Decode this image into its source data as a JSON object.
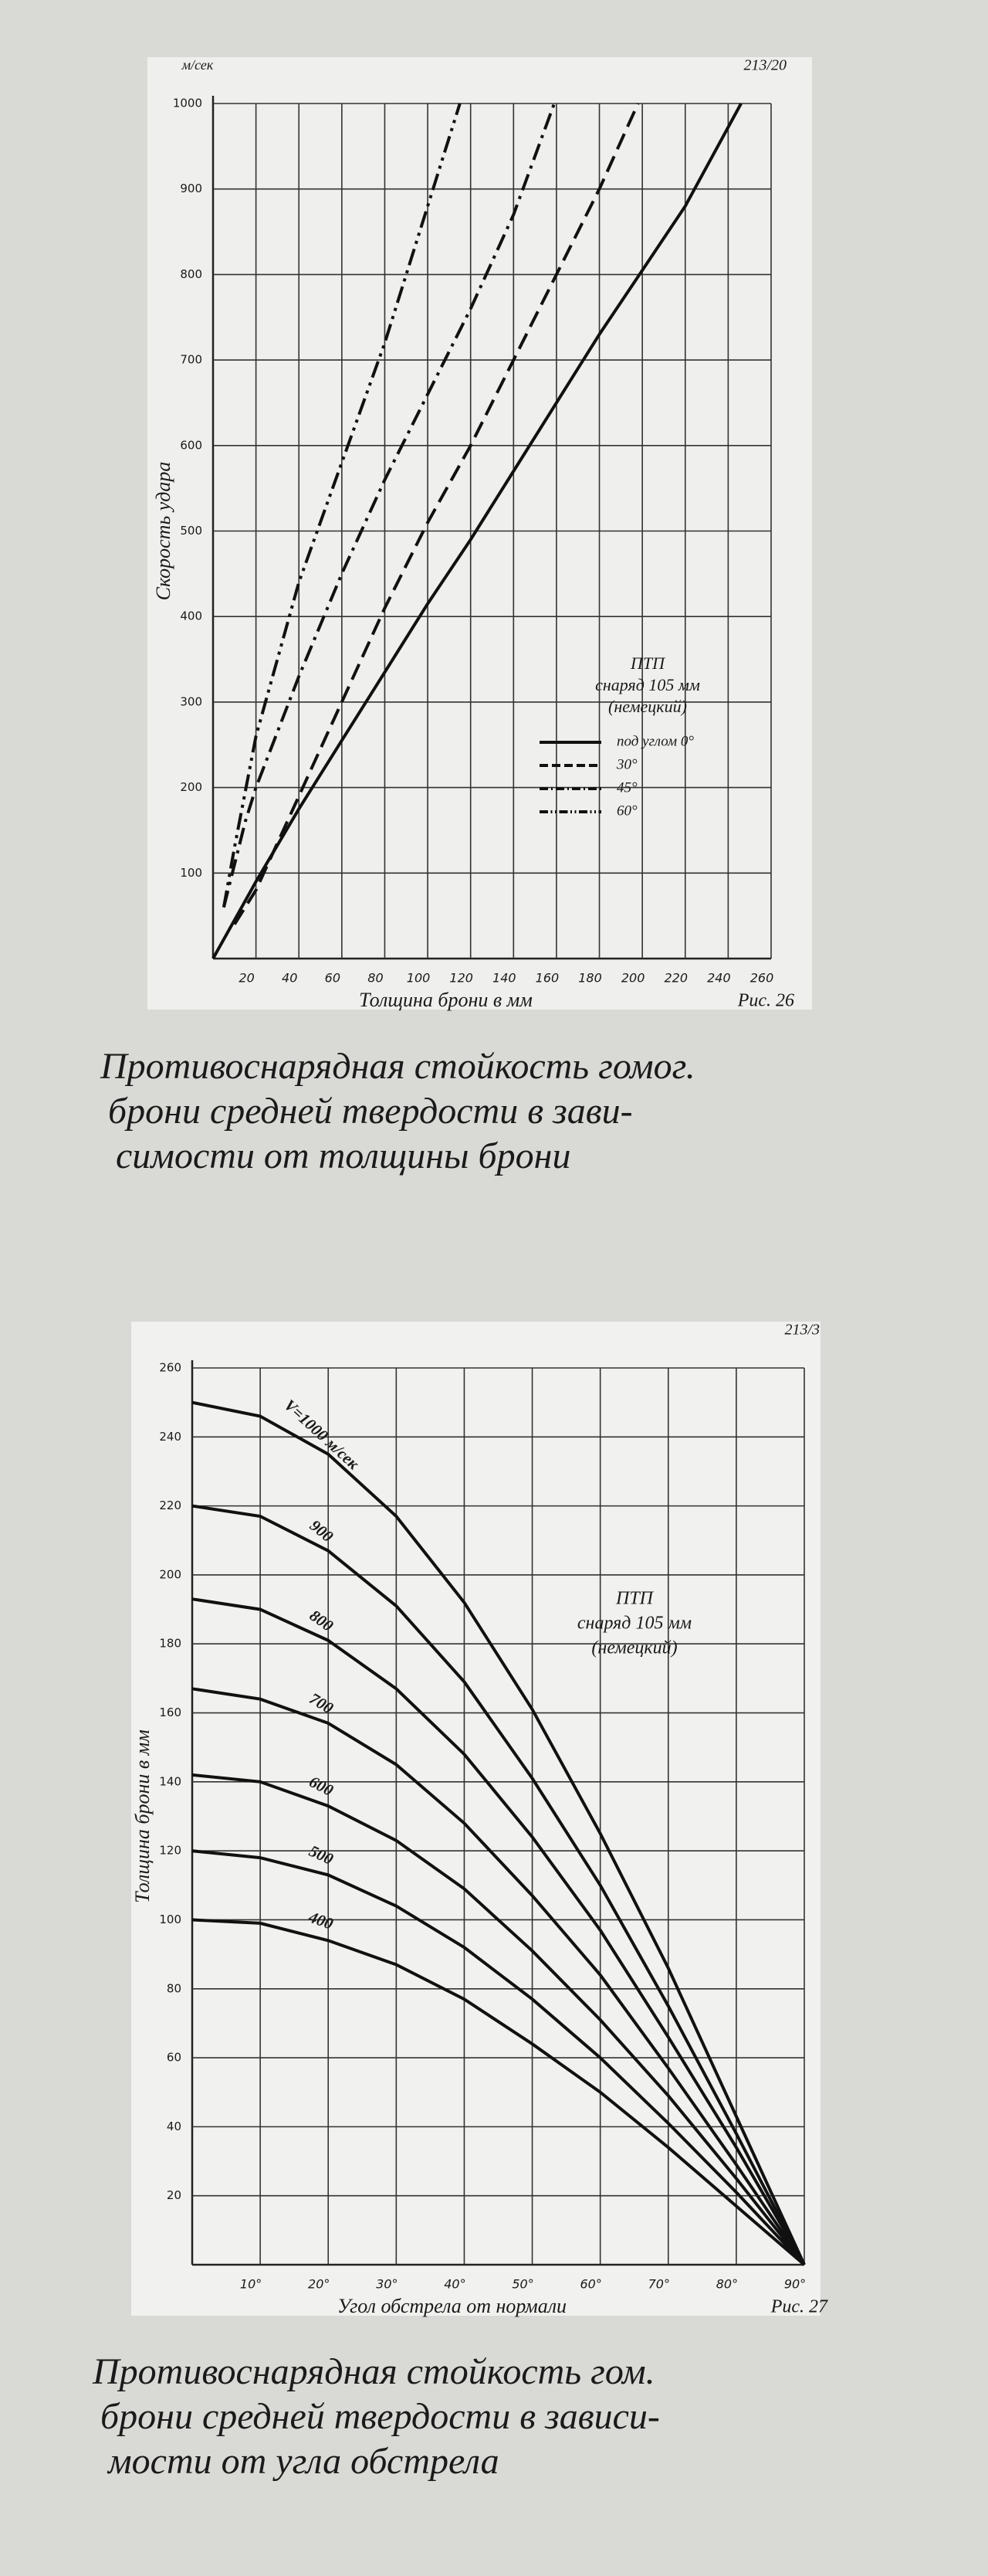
{
  "chart_data": [
    {
      "type": "line",
      "id": "213/20",
      "unit": "м/сек",
      "figure": "Рис. 26",
      "xlabel": "Толщина брони в мм",
      "ylabel": "Скорость удара",
      "xlim": [
        0,
        260
      ],
      "ylim": [
        0,
        1000
      ],
      "xticks": [
        20,
        40,
        60,
        80,
        100,
        120,
        140,
        160,
        180,
        200,
        220,
        240,
        260
      ],
      "yticks": [
        100,
        200,
        300,
        400,
        500,
        600,
        700,
        800,
        900,
        1000
      ],
      "grid": true,
      "legend": "lower right",
      "legend_title": [
        "ПТП",
        "снаряд 105 мм",
        "(немецкий)"
      ],
      "series": [
        {
          "name": "под углом 0°",
          "color": "#111111",
          "linestyle": "solid",
          "x": [
            0,
            20,
            40,
            60,
            80,
            100,
            120,
            140,
            160,
            180,
            200,
            220,
            246
          ],
          "values": [
            0,
            90,
            175,
            255,
            335,
            415,
            490,
            570,
            650,
            730,
            805,
            880,
            1000
          ]
        },
        {
          "name": "30°",
          "color": "#111111",
          "linestyle": "dashed",
          "x": [
            10,
            20,
            40,
            60,
            80,
            100,
            120,
            140,
            160,
            180,
            198
          ],
          "values": [
            40,
            80,
            190,
            300,
            410,
            510,
            600,
            700,
            800,
            900,
            1000
          ]
        },
        {
          "name": "45°",
          "color": "#111111",
          "linestyle": "dashdot",
          "x": [
            5,
            15,
            20,
            40,
            60,
            80,
            100,
            120,
            140,
            159
          ],
          "values": [
            60,
            160,
            200,
            330,
            450,
            560,
            660,
            760,
            870,
            1000
          ]
        },
        {
          "name": "60°",
          "color": "#111111",
          "linestyle": "dashdotdot",
          "x": [
            5,
            10,
            20,
            40,
            60,
            80,
            100,
            115
          ],
          "values": [
            60,
            130,
            260,
            440,
            580,
            720,
            880,
            1000
          ]
        }
      ],
      "caption": [
        "Противоснарядная стойкость гомог.",
        "брони средней твердости в зави-",
        "симости от толщины брони"
      ]
    },
    {
      "type": "line",
      "id": "213/3",
      "figure": "Рис. 27",
      "xlabel": "Угол обстрела от нормали",
      "ylabel": "Толщина брони в мм",
      "xlim": [
        0,
        90
      ],
      "ylim": [
        0,
        260
      ],
      "xticks": [
        {
          "value": 10,
          "label": "10°"
        },
        {
          "value": 20,
          "label": "20°"
        },
        {
          "value": 30,
          "label": "30°"
        },
        {
          "value": 40,
          "label": "40°"
        },
        {
          "value": 50,
          "label": "50°"
        },
        {
          "value": 60,
          "label": "60°"
        },
        {
          "value": 70,
          "label": "70°"
        },
        {
          "value": 80,
          "label": "80°"
        },
        {
          "value": 90,
          "label": "90°"
        }
      ],
      "yticks": [
        20,
        40,
        60,
        80,
        100,
        120,
        140,
        160,
        180,
        200,
        220,
        240,
        260
      ],
      "grid": true,
      "annotation": [
        "ПТП",
        "снаряд 105 мм",
        "(немецкий)"
      ],
      "x": [
        0,
        10,
        20,
        30,
        40,
        50,
        60,
        70,
        80,
        90
      ],
      "series": [
        {
          "name": "V=1000 м/сек",
          "color": "#111111",
          "values": [
            250,
            246,
            235,
            217,
            192,
            161,
            125,
            86,
            43,
            0
          ]
        },
        {
          "name": "900",
          "color": "#111111",
          "values": [
            220,
            217,
            207,
            191,
            169,
            141,
            110,
            75,
            38,
            0
          ]
        },
        {
          "name": "800",
          "color": "#111111",
          "values": [
            193,
            190,
            181,
            167,
            148,
            124,
            97,
            66,
            34,
            0
          ]
        },
        {
          "name": "700",
          "color": "#111111",
          "values": [
            167,
            164,
            157,
            145,
            128,
            107,
            84,
            57,
            29,
            0
          ]
        },
        {
          "name": "600",
          "color": "#111111",
          "values": [
            142,
            140,
            133,
            123,
            109,
            91,
            71,
            49,
            25,
            0
          ]
        },
        {
          "name": "500",
          "color": "#111111",
          "values": [
            120,
            118,
            113,
            104,
            92,
            77,
            60,
            41,
            21,
            0
          ]
        },
        {
          "name": "400",
          "color": "#111111",
          "values": [
            100,
            99,
            94,
            87,
            77,
            64,
            50,
            34,
            17,
            0
          ]
        }
      ],
      "caption": [
        "Противоснарядная стойкость гом.",
        "брони средней твердости в зависи-",
        "мости от угла обстрела"
      ]
    }
  ]
}
